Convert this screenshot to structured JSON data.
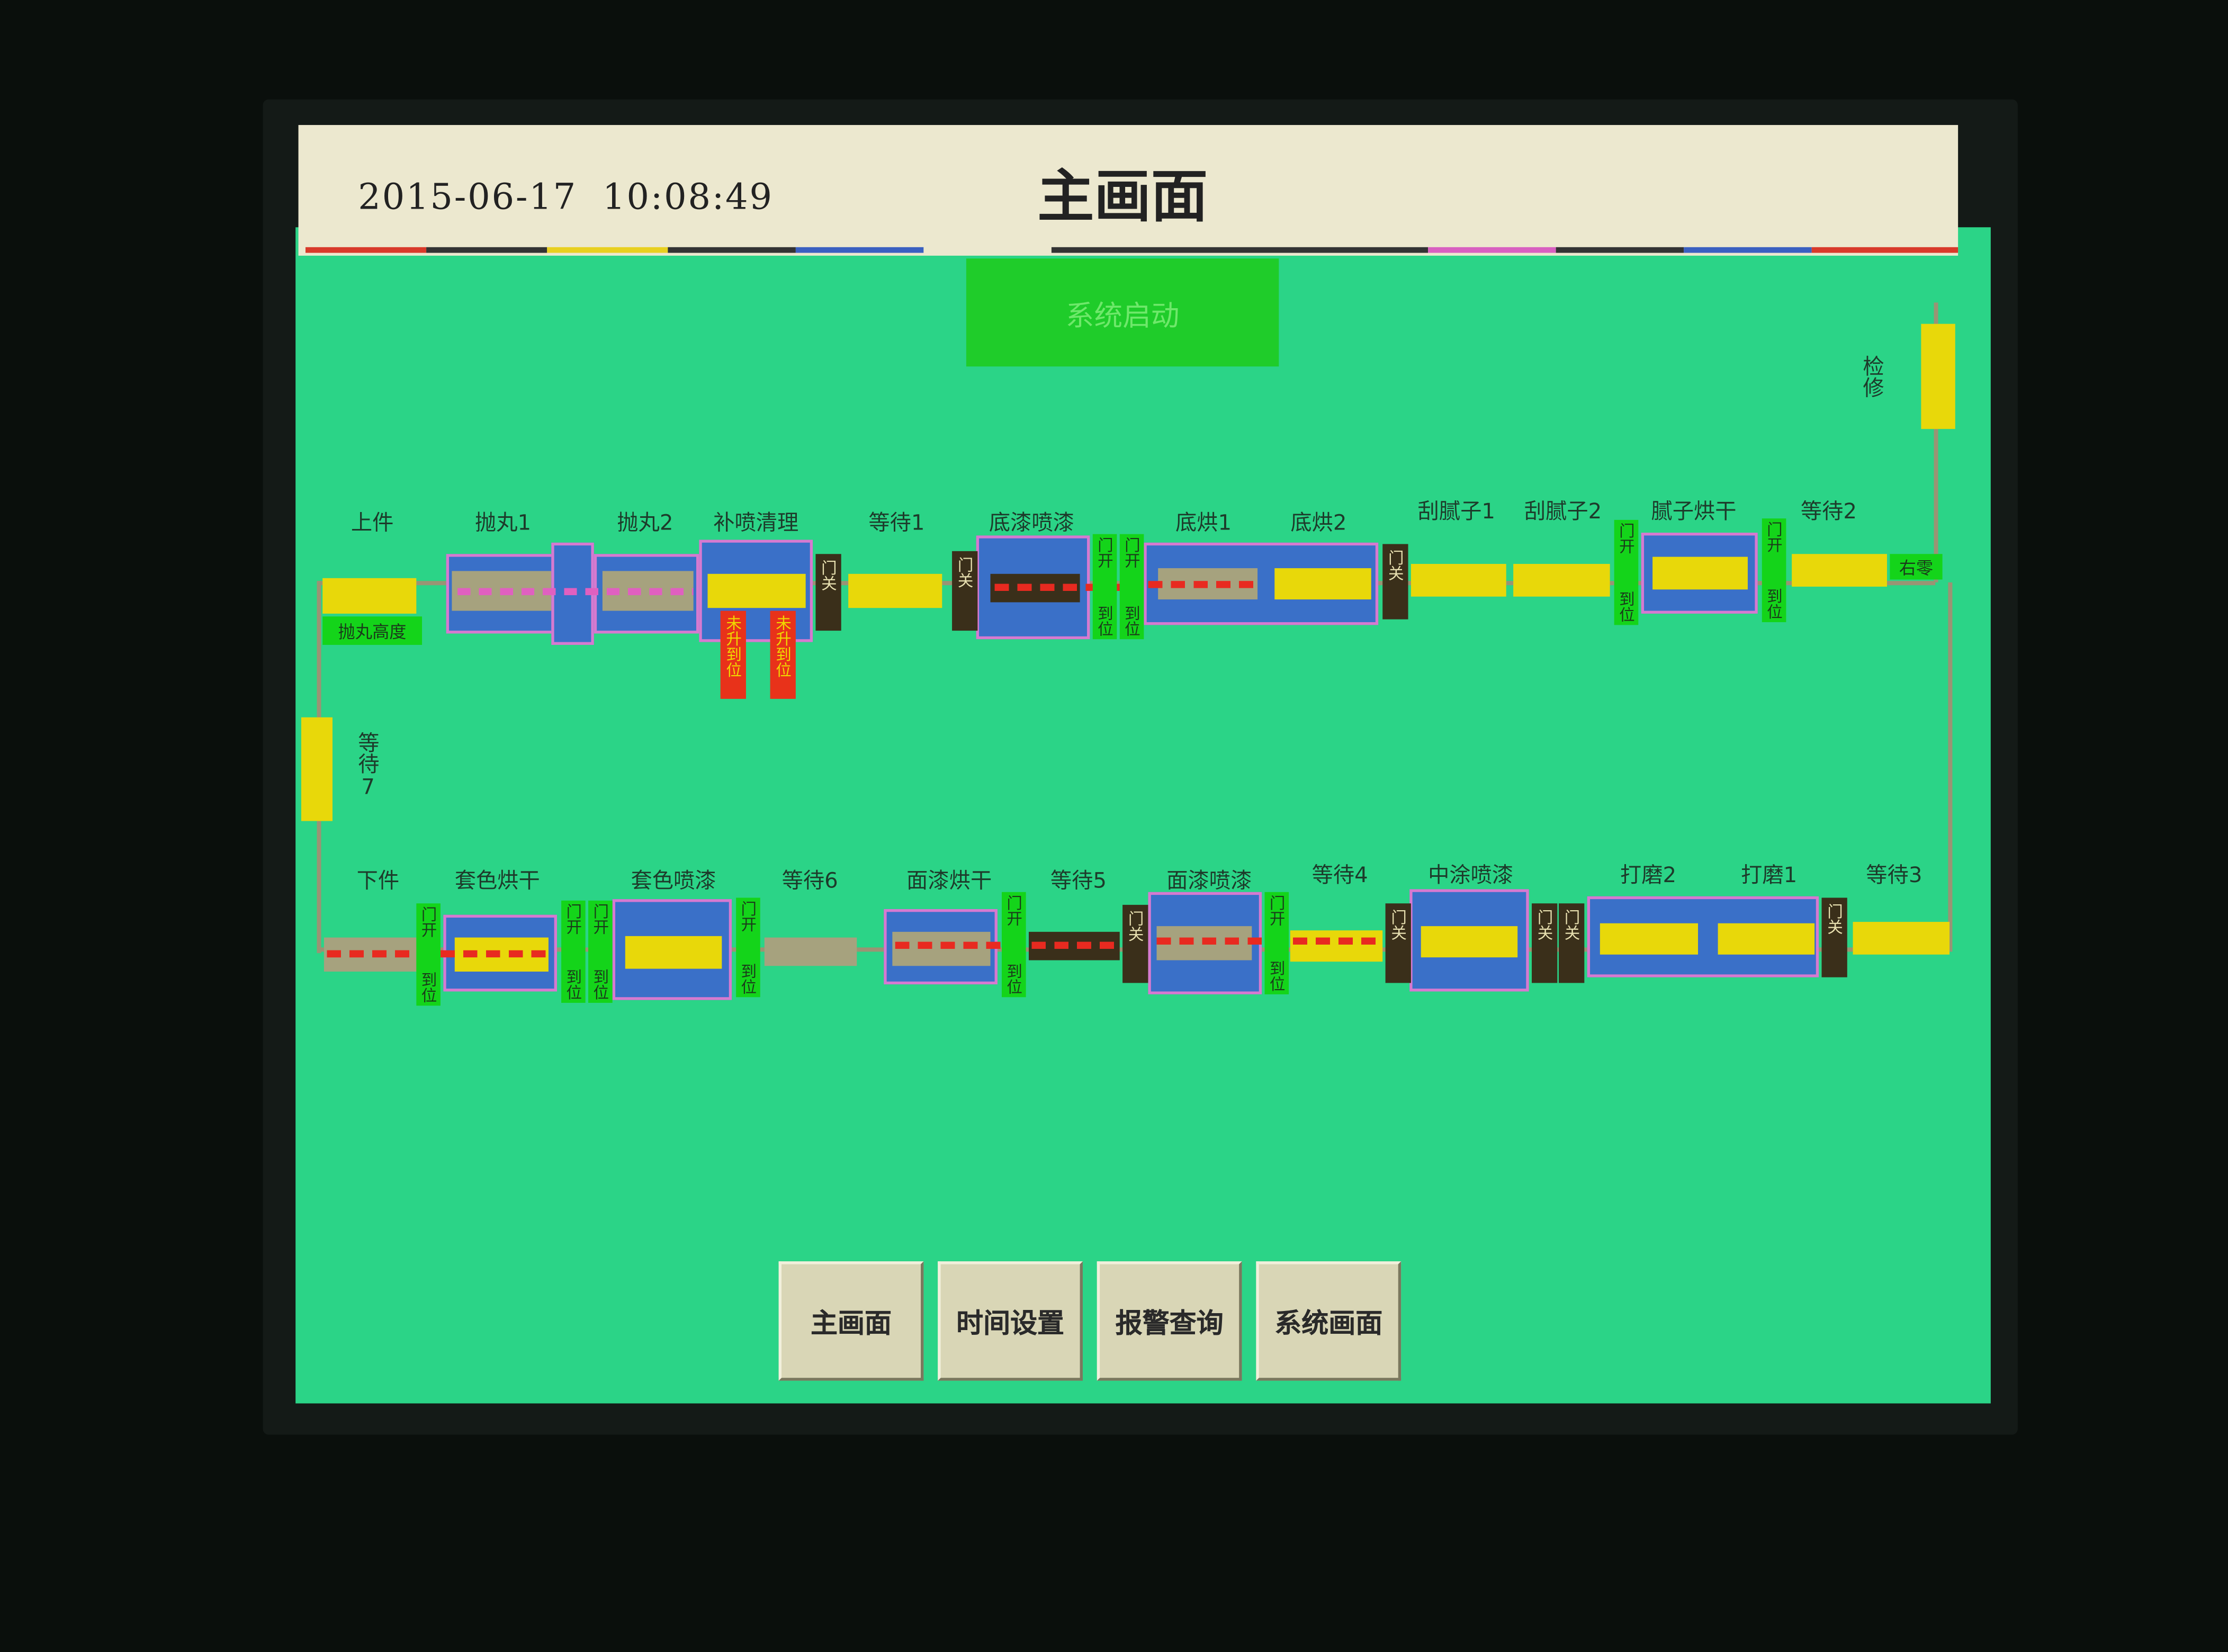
{
  "header": {
    "datetime": "2015-06-17  10:08:49",
    "title": "主画面"
  },
  "start_button": "系统启动",
  "stations_top": [
    "上件",
    "抛丸1",
    "抛丸2",
    "补喷清理",
    "等待1",
    "底漆喷漆",
    "底烘1",
    "底烘2",
    "刮腻子1",
    "刮腻子2",
    "腻子烘干",
    "等待2"
  ],
  "stations_bottom": [
    "下件",
    "套色烘干",
    "套色喷漆",
    "等待6",
    "面漆烘干",
    "等待5",
    "面漆喷漆",
    "等待4",
    "中涂喷漆",
    "打磨2",
    "打磨1",
    "等待3"
  ],
  "misc": {
    "shot_height": "抛丸高度",
    "right_label": "右零",
    "maintenance": "检修",
    "wait7": "等待7"
  },
  "tags": {
    "door_open": "门开",
    "in_position": "到位",
    "door_closed": "门关",
    "not_raised": "未升到位"
  },
  "nav": [
    "主画面",
    "时间设置",
    "报警查询",
    "系统画面"
  ],
  "colors": {
    "screen_bg": "#2bd487",
    "station_box": "#3a70c8",
    "occupied": "#e8d80a",
    "empty": "#a6a27e",
    "dashed_track": "#e82a20",
    "door_open_tag": "#14d41a",
    "door_closed_tag": "#3a2f1a",
    "alarm_tag": "#e8321a",
    "start_button": "#1fcc2a"
  }
}
